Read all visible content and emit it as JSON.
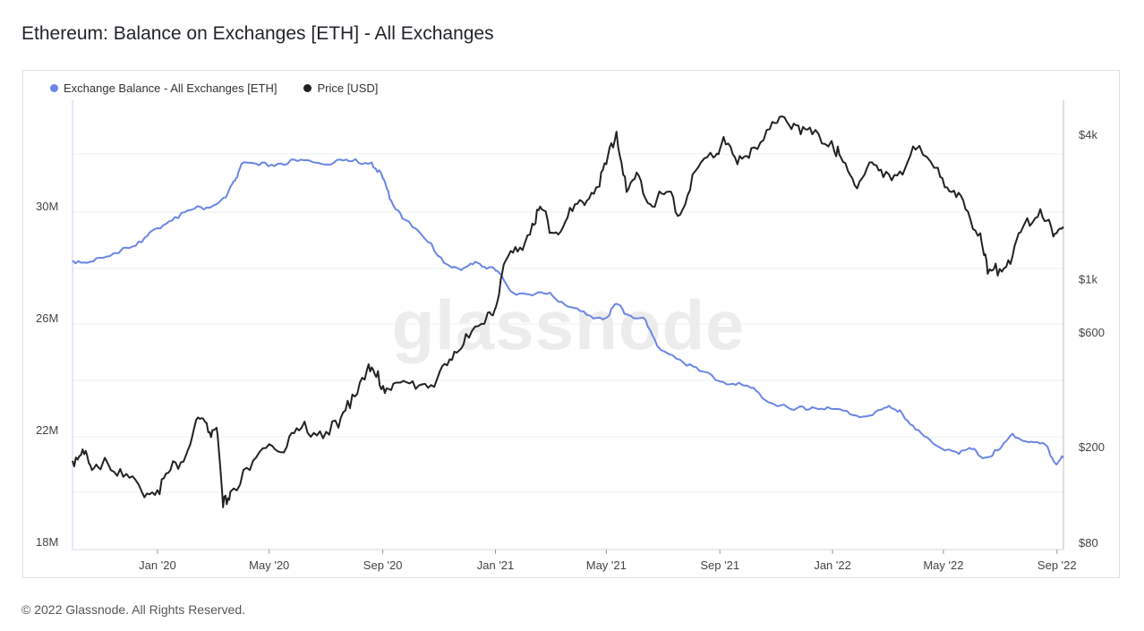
{
  "title": "Ethereum: Balance on Exchanges [ETH] - All Exchanges",
  "footer": "© 2022 Glassnode. All Rights Reserved.",
  "watermark": "glassnode",
  "legend": [
    {
      "label": "Exchange Balance - All Exchanges [ETH]",
      "color": "#6b85e6"
    },
    {
      "label": "Price [USD]",
      "color": "#222222"
    }
  ],
  "chart_data": {
    "type": "line",
    "title": "Ethereum: Balance on Exchanges [ETH] - All Exchanges",
    "x_ticks": [
      "Jan '20",
      "May '20",
      "Sep '20",
      "Jan '21",
      "May '21",
      "Sep '21",
      "Jan '22",
      "May '22",
      "Sep '22"
    ],
    "x_range": [
      "2019-10-01",
      "2022-09-08"
    ],
    "y_left": {
      "ticks": [
        "18M",
        "22M",
        "26M",
        "30M"
      ],
      "tick_values": [
        18000000,
        22000000,
        26000000,
        30000000
      ],
      "range": [
        18000000,
        30000000
      ],
      "scale": "linear"
    },
    "y_right": {
      "ticks": [
        "$80",
        "$200",
        "$600",
        "$1k",
        "$4k"
      ],
      "tick_values": [
        80,
        200,
        600,
        1000,
        4000
      ],
      "range": [
        80,
        4800
      ],
      "scale": "log"
    },
    "grid": true,
    "legend_position": "top-left",
    "series": [
      {
        "name": "Exchange Balance - All Exchanges [ETH]",
        "axis": "left",
        "color": "#6b85e6",
        "points": [
          [
            "2019-10-01",
            28040000
          ],
          [
            "2019-10-20",
            28000000
          ],
          [
            "2019-11-10",
            28200000
          ],
          [
            "2019-11-25",
            28500000
          ],
          [
            "2019-12-15",
            28700000
          ],
          [
            "2020-01-01",
            29200000
          ],
          [
            "2020-01-20",
            29600000
          ],
          [
            "2020-02-10",
            29900000
          ],
          [
            "2020-03-01",
            30000000
          ],
          [
            "2020-03-15",
            30300000
          ],
          [
            "2020-03-25",
            30900000
          ],
          [
            "2020-04-01",
            31500000
          ],
          [
            "2020-04-20",
            31450000
          ],
          [
            "2020-05-10",
            31500000
          ],
          [
            "2020-06-01",
            31600000
          ],
          [
            "2020-06-20",
            31550000
          ],
          [
            "2020-07-10",
            31550000
          ],
          [
            "2020-07-30",
            31600000
          ],
          [
            "2020-08-20",
            31550000
          ],
          [
            "2020-09-01",
            31000000
          ],
          [
            "2020-09-10",
            30200000
          ],
          [
            "2020-09-25",
            29500000
          ],
          [
            "2020-10-20",
            28700000
          ],
          [
            "2020-11-10",
            27900000
          ],
          [
            "2020-11-25",
            27700000
          ],
          [
            "2020-12-10",
            28000000
          ],
          [
            "2020-12-25",
            27800000
          ],
          [
            "2021-01-05",
            27600000
          ],
          [
            "2021-01-20",
            26900000
          ],
          [
            "2021-02-10",
            26800000
          ],
          [
            "2021-03-01",
            26900000
          ],
          [
            "2021-03-20",
            26400000
          ],
          [
            "2021-04-10",
            26100000
          ],
          [
            "2021-05-01",
            26000000
          ],
          [
            "2021-05-12",
            26500000
          ],
          [
            "2021-05-25",
            26100000
          ],
          [
            "2021-06-10",
            26000000
          ],
          [
            "2021-06-25",
            25000000
          ],
          [
            "2021-07-20",
            24500000
          ],
          [
            "2021-08-10",
            24100000
          ],
          [
            "2021-09-05",
            23700000
          ],
          [
            "2021-09-25",
            23600000
          ],
          [
            "2021-10-10",
            23400000
          ],
          [
            "2021-10-30",
            22900000
          ],
          [
            "2021-11-20",
            22700000
          ],
          [
            "2021-12-10",
            22800000
          ],
          [
            "2021-12-30",
            22750000
          ],
          [
            "2022-01-20",
            22550000
          ],
          [
            "2022-02-10",
            22500000
          ],
          [
            "2022-03-01",
            22800000
          ],
          [
            "2022-03-15",
            22700000
          ],
          [
            "2022-04-01",
            22000000
          ],
          [
            "2022-04-20",
            21500000
          ],
          [
            "2022-05-15",
            21200000
          ],
          [
            "2022-06-01",
            21300000
          ],
          [
            "2022-06-15",
            21000000
          ],
          [
            "2022-07-01",
            21300000
          ],
          [
            "2022-07-15",
            21850000
          ],
          [
            "2022-08-01",
            21550000
          ],
          [
            "2022-08-20",
            21450000
          ],
          [
            "2022-08-30",
            20800000
          ],
          [
            "2022-09-08",
            21000000
          ]
        ]
      },
      {
        "name": "Price [USD]",
        "axis": "right",
        "color": "#222222",
        "points": [
          [
            "2019-10-01",
            175
          ],
          [
            "2019-10-12",
            195
          ],
          [
            "2019-10-22",
            160
          ],
          [
            "2019-11-05",
            180
          ],
          [
            "2019-11-25",
            150
          ],
          [
            "2019-12-15",
            130
          ],
          [
            "2020-01-01",
            132
          ],
          [
            "2020-01-15",
            160
          ],
          [
            "2020-02-01",
            185
          ],
          [
            "2020-02-14",
            265
          ],
          [
            "2020-02-25",
            230
          ],
          [
            "2020-03-05",
            240
          ],
          [
            "2020-03-12",
            112
          ],
          [
            "2020-03-20",
            130
          ],
          [
            "2020-04-10",
            160
          ],
          [
            "2020-05-01",
            205
          ],
          [
            "2020-05-20",
            200
          ],
          [
            "2020-06-05",
            240
          ],
          [
            "2020-06-25",
            232
          ],
          [
            "2020-07-15",
            240
          ],
          [
            "2020-07-30",
            330
          ],
          [
            "2020-08-15",
            420
          ],
          [
            "2020-08-25",
            390
          ],
          [
            "2020-09-05",
            350
          ],
          [
            "2020-09-20",
            370
          ],
          [
            "2020-10-10",
            360
          ],
          [
            "2020-10-30",
            385
          ],
          [
            "2020-11-15",
            460
          ],
          [
            "2020-11-30",
            590
          ],
          [
            "2020-12-20",
            650
          ],
          [
            "2020-12-31",
            740
          ],
          [
            "2021-01-10",
            1150
          ],
          [
            "2021-01-25",
            1300
          ],
          [
            "2021-02-10",
            1700
          ],
          [
            "2021-02-20",
            1950
          ],
          [
            "2021-03-05",
            1550
          ],
          [
            "2021-03-20",
            1800
          ],
          [
            "2021-04-05",
            2100
          ],
          [
            "2021-04-20",
            2400
          ],
          [
            "2021-05-01",
            3000
          ],
          [
            "2021-05-12",
            4100
          ],
          [
            "2021-05-23",
            2300
          ],
          [
            "2021-06-05",
            2700
          ],
          [
            "2021-06-20",
            2000
          ],
          [
            "2021-07-05",
            2300
          ],
          [
            "2021-07-20",
            1850
          ],
          [
            "2021-08-05",
            2800
          ],
          [
            "2021-08-25",
            3200
          ],
          [
            "2021-09-05",
            3900
          ],
          [
            "2021-09-20",
            3000
          ],
          [
            "2021-10-05",
            3500
          ],
          [
            "2021-10-25",
            4200
          ],
          [
            "2021-11-10",
            4700
          ],
          [
            "2021-11-25",
            4350
          ],
          [
            "2021-12-10",
            4000
          ],
          [
            "2021-12-31",
            3750
          ],
          [
            "2022-01-10",
            3200
          ],
          [
            "2022-01-25",
            2450
          ],
          [
            "2022-02-10",
            3050
          ],
          [
            "2022-02-25",
            2650
          ],
          [
            "2022-03-15",
            2800
          ],
          [
            "2022-04-01",
            3450
          ],
          [
            "2022-04-25",
            2900
          ],
          [
            "2022-05-10",
            2300
          ],
          [
            "2022-05-25",
            1950
          ],
          [
            "2022-06-10",
            1550
          ],
          [
            "2022-06-18",
            1050
          ],
          [
            "2022-07-01",
            1100
          ],
          [
            "2022-07-15",
            1250
          ],
          [
            "2022-07-28",
            1700
          ],
          [
            "2022-08-14",
            1950
          ],
          [
            "2022-08-28",
            1500
          ],
          [
            "2022-09-08",
            1650
          ]
        ]
      }
    ]
  }
}
